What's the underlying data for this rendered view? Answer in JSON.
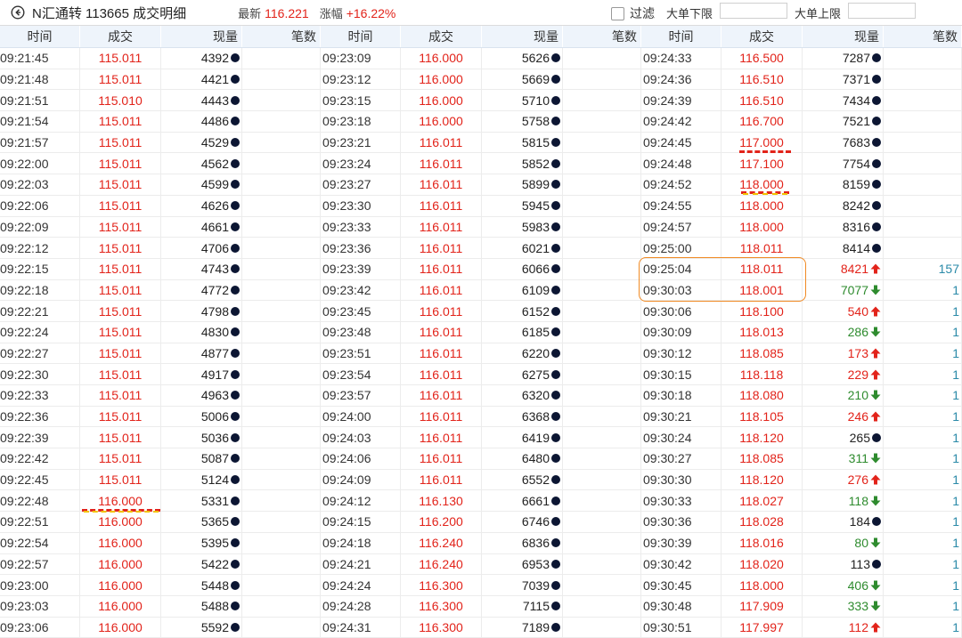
{
  "header": {
    "title": "N汇通转 113665 成交明细",
    "latest_label": "最新",
    "latest_value": "116.221",
    "change_label": "涨幅",
    "change_value": "+16.22%",
    "filter_label": "过滤",
    "min_label": "大单下限",
    "max_label": "大单上限"
  },
  "columns": [
    "时间",
    "成交",
    "现量",
    "笔数"
  ],
  "panels": [
    {
      "rows": [
        [
          "09:21:45",
          "115.011",
          "4392",
          "dot",
          ""
        ],
        [
          "09:21:48",
          "115.011",
          "4421",
          "dot",
          ""
        ],
        [
          "09:21:51",
          "115.010",
          "4443",
          "dot",
          ""
        ],
        [
          "09:21:54",
          "115.011",
          "4486",
          "dot",
          ""
        ],
        [
          "09:21:57",
          "115.011",
          "4529",
          "dot",
          ""
        ],
        [
          "09:22:00",
          "115.011",
          "4562",
          "dot",
          ""
        ],
        [
          "09:22:03",
          "115.011",
          "4599",
          "dot",
          ""
        ],
        [
          "09:22:06",
          "115.011",
          "4626",
          "dot",
          ""
        ],
        [
          "09:22:09",
          "115.011",
          "4661",
          "dot",
          ""
        ],
        [
          "09:22:12",
          "115.011",
          "4706",
          "dot",
          ""
        ],
        [
          "09:22:15",
          "115.011",
          "4743",
          "dot",
          ""
        ],
        [
          "09:22:18",
          "115.011",
          "4772",
          "dot",
          ""
        ],
        [
          "09:22:21",
          "115.011",
          "4798",
          "dot",
          ""
        ],
        [
          "09:22:24",
          "115.011",
          "4830",
          "dot",
          ""
        ],
        [
          "09:22:27",
          "115.011",
          "4877",
          "dot",
          ""
        ],
        [
          "09:22:30",
          "115.011",
          "4917",
          "dot",
          ""
        ],
        [
          "09:22:33",
          "115.011",
          "4963",
          "dot",
          ""
        ],
        [
          "09:22:36",
          "115.011",
          "5006",
          "dot",
          ""
        ],
        [
          "09:22:39",
          "115.011",
          "5036",
          "dot",
          ""
        ],
        [
          "09:22:42",
          "115.011",
          "5087",
          "dot",
          ""
        ],
        [
          "09:22:45",
          "115.011",
          "5124",
          "dot",
          ""
        ],
        [
          "09:22:48",
          "116.000",
          "5331",
          "dot",
          ""
        ],
        [
          "09:22:51",
          "116.000",
          "5365",
          "dot",
          ""
        ],
        [
          "09:22:54",
          "116.000",
          "5395",
          "dot",
          ""
        ],
        [
          "09:22:57",
          "116.000",
          "5422",
          "dot",
          ""
        ],
        [
          "09:23:00",
          "116.000",
          "5448",
          "dot",
          ""
        ],
        [
          "09:23:03",
          "116.000",
          "5488",
          "dot",
          ""
        ],
        [
          "09:23:06",
          "116.000",
          "5592",
          "dot",
          ""
        ]
      ]
    },
    {
      "rows": [
        [
          "09:23:09",
          "116.000",
          "5626",
          "dot",
          ""
        ],
        [
          "09:23:12",
          "116.000",
          "5669",
          "dot",
          ""
        ],
        [
          "09:23:15",
          "116.000",
          "5710",
          "dot",
          ""
        ],
        [
          "09:23:18",
          "116.000",
          "5758",
          "dot",
          ""
        ],
        [
          "09:23:21",
          "116.011",
          "5815",
          "dot",
          ""
        ],
        [
          "09:23:24",
          "116.011",
          "5852",
          "dot",
          ""
        ],
        [
          "09:23:27",
          "116.011",
          "5899",
          "dot",
          ""
        ],
        [
          "09:23:30",
          "116.011",
          "5945",
          "dot",
          ""
        ],
        [
          "09:23:33",
          "116.011",
          "5983",
          "dot",
          ""
        ],
        [
          "09:23:36",
          "116.011",
          "6021",
          "dot",
          ""
        ],
        [
          "09:23:39",
          "116.011",
          "6066",
          "dot",
          ""
        ],
        [
          "09:23:42",
          "116.011",
          "6109",
          "dot",
          ""
        ],
        [
          "09:23:45",
          "116.011",
          "6152",
          "dot",
          ""
        ],
        [
          "09:23:48",
          "116.011",
          "6185",
          "dot",
          ""
        ],
        [
          "09:23:51",
          "116.011",
          "6220",
          "dot",
          ""
        ],
        [
          "09:23:54",
          "116.011",
          "6275",
          "dot",
          ""
        ],
        [
          "09:23:57",
          "116.011",
          "6320",
          "dot",
          ""
        ],
        [
          "09:24:00",
          "116.011",
          "6368",
          "dot",
          ""
        ],
        [
          "09:24:03",
          "116.011",
          "6419",
          "dot",
          ""
        ],
        [
          "09:24:06",
          "116.011",
          "6480",
          "dot",
          ""
        ],
        [
          "09:24:09",
          "116.011",
          "6552",
          "dot",
          ""
        ],
        [
          "09:24:12",
          "116.130",
          "6661",
          "dot",
          ""
        ],
        [
          "09:24:15",
          "116.200",
          "6746",
          "dot",
          ""
        ],
        [
          "09:24:18",
          "116.240",
          "6836",
          "dot",
          ""
        ],
        [
          "09:24:21",
          "116.240",
          "6953",
          "dot",
          ""
        ],
        [
          "09:24:24",
          "116.300",
          "7039",
          "dot",
          ""
        ],
        [
          "09:24:28",
          "116.300",
          "7115",
          "dot",
          ""
        ],
        [
          "09:24:31",
          "116.300",
          "7189",
          "dot",
          ""
        ]
      ]
    },
    {
      "rows": [
        [
          "09:24:33",
          "116.500",
          "7287",
          "dot",
          ""
        ],
        [
          "09:24:36",
          "116.510",
          "7371",
          "dot",
          ""
        ],
        [
          "09:24:39",
          "116.510",
          "7434",
          "dot",
          ""
        ],
        [
          "09:24:42",
          "116.700",
          "7521",
          "dot",
          ""
        ],
        [
          "09:24:45",
          "117.000",
          "7683",
          "dot",
          ""
        ],
        [
          "09:24:48",
          "117.100",
          "7754",
          "dot",
          ""
        ],
        [
          "09:24:52",
          "118.000",
          "8159",
          "dot",
          ""
        ],
        [
          "09:24:55",
          "118.000",
          "8242",
          "dot",
          ""
        ],
        [
          "09:24:57",
          "118.000",
          "8316",
          "dot",
          ""
        ],
        [
          "09:25:00",
          "118.011",
          "8414",
          "dot",
          ""
        ],
        [
          "09:25:04",
          "118.011",
          "8421",
          "up",
          "157"
        ],
        [
          "09:30:03",
          "118.001",
          "7077",
          "down",
          "1"
        ],
        [
          "09:30:06",
          "118.100",
          "540",
          "up",
          "1"
        ],
        [
          "09:30:09",
          "118.013",
          "286",
          "down",
          "1"
        ],
        [
          "09:30:12",
          "118.085",
          "173",
          "up",
          "1"
        ],
        [
          "09:30:15",
          "118.118",
          "229",
          "up",
          "1"
        ],
        [
          "09:30:18",
          "118.080",
          "210",
          "down",
          "1"
        ],
        [
          "09:30:21",
          "118.105",
          "246",
          "up",
          "1"
        ],
        [
          "09:30:24",
          "118.120",
          "265",
          "dot",
          "1"
        ],
        [
          "09:30:27",
          "118.085",
          "311",
          "down",
          "1"
        ],
        [
          "09:30:30",
          "118.120",
          "276",
          "up",
          "1"
        ],
        [
          "09:30:33",
          "118.027",
          "118",
          "down",
          "1"
        ],
        [
          "09:30:36",
          "118.028",
          "184",
          "dot",
          "1"
        ],
        [
          "09:30:39",
          "118.016",
          "80",
          "down",
          "1"
        ],
        [
          "09:30:42",
          "118.020",
          "113",
          "dot",
          "1"
        ],
        [
          "09:30:45",
          "118.000",
          "406",
          "down",
          "1"
        ],
        [
          "09:30:48",
          "117.909",
          "333",
          "down",
          "1"
        ],
        [
          "09:30:51",
          "117.997",
          "112",
          "up",
          "1"
        ]
      ]
    }
  ],
  "colors": {
    "up": "#e2231a",
    "down": "#2e8b2e",
    "neutral": "#0c1633",
    "count": "#2a8aa8",
    "highlight_box": "#f08a24"
  },
  "icons": {
    "back": "back-circle-arrow-icon",
    "up": "arrow-up-icon",
    "down": "arrow-down-icon",
    "neutral": "dot-icon"
  }
}
